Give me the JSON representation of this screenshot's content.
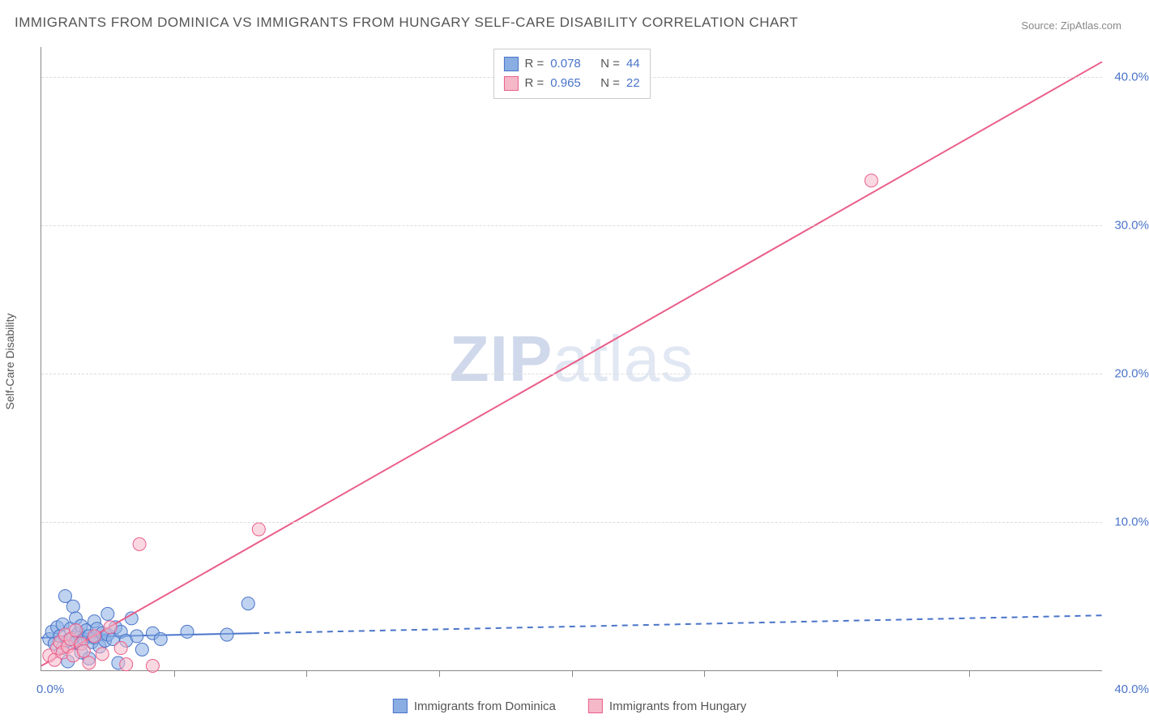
{
  "title": "IMMIGRANTS FROM DOMINICA VS IMMIGRANTS FROM HUNGARY SELF-CARE DISABILITY CORRELATION CHART",
  "source_label": "Source:",
  "source_name": "ZipAtlas.com",
  "ylabel": "Self-Care Disability",
  "watermark_bold": "ZIP",
  "watermark_light": "atlas",
  "chart": {
    "type": "scatter-with-regression",
    "background_color": "#ffffff",
    "grid_color": "#dddddd",
    "axis_color": "#888888",
    "label_color": "#555555",
    "value_color": "#4a74c9",
    "xlim": [
      0,
      40
    ],
    "ylim": [
      0,
      42
    ],
    "xticks_minor": [
      5,
      10,
      15,
      20,
      25,
      30,
      35
    ],
    "xtick_labels": {
      "min": "0.0%",
      "max": "40.0%"
    },
    "ytick_positions": [
      10,
      20,
      30,
      40
    ],
    "ytick_labels": [
      "10.0%",
      "20.0%",
      "30.0%",
      "40.0%"
    ],
    "point_radius": 8,
    "point_opacity": 0.55,
    "line_width": 2
  },
  "series": [
    {
      "id": "dominica",
      "label": "Immigrants from Dominica",
      "fill_color": "#8aaee3",
      "stroke_color": "#4a74c9",
      "R": "0.078",
      "N": "44",
      "regression": {
        "x1": 0,
        "y1": 2.2,
        "x2": 40,
        "y2": 3.7,
        "solid_until_x": 8
      },
      "points": [
        [
          0.3,
          2.1
        ],
        [
          0.4,
          2.6
        ],
        [
          0.5,
          1.8
        ],
        [
          0.6,
          2.9
        ],
        [
          0.7,
          2.3
        ],
        [
          0.8,
          1.5
        ],
        [
          0.8,
          3.1
        ],
        [
          1.0,
          2.0
        ],
        [
          1.0,
          0.6
        ],
        [
          1.1,
          2.8
        ],
        [
          1.2,
          2.2
        ],
        [
          1.2,
          4.3
        ],
        [
          1.3,
          1.9
        ],
        [
          1.3,
          3.5
        ],
        [
          1.4,
          2.5
        ],
        [
          1.5,
          3.0
        ],
        [
          1.5,
          1.2
        ],
        [
          1.6,
          2.1
        ],
        [
          1.7,
          2.7
        ],
        [
          1.8,
          2.3
        ],
        [
          1.8,
          0.8
        ],
        [
          1.9,
          1.9
        ],
        [
          2.0,
          3.3
        ],
        [
          2.0,
          2.2
        ],
        [
          2.1,
          2.8
        ],
        [
          2.2,
          1.6
        ],
        [
          2.3,
          2.5
        ],
        [
          2.4,
          2.0
        ],
        [
          2.5,
          3.8
        ],
        [
          2.5,
          2.4
        ],
        [
          2.7,
          2.1
        ],
        [
          2.8,
          2.9
        ],
        [
          2.9,
          0.5
        ],
        [
          3.0,
          2.6
        ],
        [
          3.2,
          2.0
        ],
        [
          3.4,
          3.5
        ],
        [
          3.6,
          2.3
        ],
        [
          3.8,
          1.4
        ],
        [
          4.2,
          2.5
        ],
        [
          4.5,
          2.1
        ],
        [
          5.5,
          2.6
        ],
        [
          7.0,
          2.4
        ],
        [
          7.8,
          4.5
        ],
        [
          0.9,
          5.0
        ]
      ]
    },
    {
      "id": "hungary",
      "label": "Immigrants from Hungary",
      "fill_color": "#f5b8c9",
      "stroke_color": "#ea5f8a",
      "R": "0.965",
      "N": "22",
      "regression": {
        "x1": 0,
        "y1": 0.3,
        "x2": 40,
        "y2": 41.0,
        "solid_until_x": 40
      },
      "points": [
        [
          0.3,
          1.0
        ],
        [
          0.5,
          0.7
        ],
        [
          0.6,
          1.5
        ],
        [
          0.7,
          1.9
        ],
        [
          0.8,
          1.2
        ],
        [
          0.9,
          2.4
        ],
        [
          1.0,
          1.6
        ],
        [
          1.1,
          2.1
        ],
        [
          1.2,
          1.0
        ],
        [
          1.3,
          2.7
        ],
        [
          1.5,
          1.8
        ],
        [
          1.6,
          1.3
        ],
        [
          1.8,
          0.5
        ],
        [
          2.0,
          2.3
        ],
        [
          2.3,
          1.1
        ],
        [
          2.6,
          2.9
        ],
        [
          3.0,
          1.5
        ],
        [
          3.2,
          0.4
        ],
        [
          3.7,
          8.5
        ],
        [
          4.2,
          0.3
        ],
        [
          8.2,
          9.5
        ],
        [
          31.3,
          33.0
        ]
      ]
    }
  ]
}
